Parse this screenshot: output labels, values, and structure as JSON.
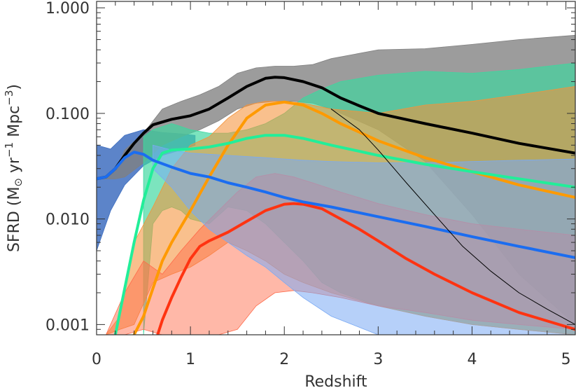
{
  "chart_data": {
    "type": "area",
    "title": "",
    "xlabel": "Redshift",
    "ylabel": {
      "prefix": "SFRD (M",
      "sun": "⊙",
      "mid1": " yr",
      "exp1": "−1",
      "mid2": " Mpc",
      "exp2": "−3",
      "suffix": ")"
    },
    "xlim": [
      0,
      5.1
    ],
    "ylim": [
      0.0008,
      1.15
    ],
    "yscale": "log",
    "grid": false,
    "x_ticks": [
      "0",
      "1",
      "2",
      "3",
      "4",
      "5"
    ],
    "x_tick_values": [
      0,
      1,
      2,
      3,
      4,
      5
    ],
    "y_ticks": [
      "0.001",
      "0.010",
      "0.100",
      "1.000"
    ],
    "y_tick_values": [
      0.001,
      0.01,
      0.1,
      1.0
    ],
    "bands": [
      {
        "color": "#3f6fc0",
        "opacity": 0.85,
        "x": [
          0,
          0.15,
          0.3,
          0.5,
          0.7,
          0.9,
          1.05
        ],
        "upper": [
          0.05,
          0.046,
          0.062,
          0.07,
          0.066,
          0.064,
          0.062
        ],
        "lower": [
          0.005,
          0.012,
          0.021,
          0.032,
          0.04,
          0.045,
          0.05
        ]
      },
      {
        "color": "#808080",
        "opacity": 0.78,
        "x": [
          0,
          0.1,
          0.2,
          0.3,
          0.5,
          0.7,
          0.9,
          1.1,
          1.3,
          1.5,
          1.7,
          1.9,
          2.1,
          2.3,
          2.5,
          3.0,
          3.5,
          4.0,
          4.5,
          5.1
        ],
        "upper": [
          0.024,
          0.025,
          0.028,
          0.045,
          0.065,
          0.11,
          0.13,
          0.15,
          0.18,
          0.24,
          0.27,
          0.28,
          0.28,
          0.29,
          0.33,
          0.4,
          0.41,
          0.45,
          0.5,
          0.55
        ],
        "lower": [
          0.024,
          0.024,
          0.024,
          0.025,
          0.034,
          0.05,
          0.06,
          0.07,
          0.085,
          0.11,
          0.125,
          0.13,
          0.13,
          0.125,
          0.11,
          0.07,
          0.035,
          0.011,
          0.003,
          0.001
        ]
      },
      {
        "color": "#3ed79f",
        "opacity": 0.68,
        "x": [
          0.5,
          0.6,
          0.7,
          0.8,
          0.9,
          1.0,
          1.2,
          1.4,
          1.6,
          1.8,
          2.0,
          2.2,
          2.4,
          2.6,
          3.0,
          3.5,
          4.0,
          4.5,
          5.1
        ],
        "upper": [
          0.06,
          0.07,
          0.075,
          0.08,
          0.075,
          0.07,
          0.065,
          0.065,
          0.07,
          0.08,
          0.1,
          0.14,
          0.17,
          0.2,
          0.23,
          0.25,
          0.24,
          0.26,
          0.3
        ],
        "lower": [
          0.0008,
          0.009,
          0.012,
          0.013,
          0.012,
          0.01,
          0.009,
          0.013,
          0.012,
          0.009,
          0.006,
          0.004,
          0.0025,
          0.002,
          0.0015,
          0.0012,
          0.001,
          0.0009,
          0.0008
        ]
      },
      {
        "color": "#f5933a",
        "opacity": 0.58,
        "x": [
          0.1,
          0.25,
          0.4,
          0.6,
          0.8,
          1.0,
          1.2,
          1.4,
          1.6,
          1.8,
          2.0,
          2.2,
          2.5,
          3.0,
          3.5,
          4.0,
          4.5,
          5.1
        ],
        "upper": [
          0.0008,
          0.0012,
          0.006,
          0.013,
          0.03,
          0.05,
          0.06,
          0.09,
          0.12,
          0.13,
          0.13,
          0.125,
          0.11,
          0.1,
          0.12,
          0.13,
          0.15,
          0.18
        ],
        "lower": [
          0.0008,
          0.0009,
          0.001,
          0.0025,
          0.003,
          0.0035,
          0.0045,
          0.006,
          0.005,
          0.004,
          0.003,
          0.0025,
          0.002,
          0.0015,
          0.0012,
          0.001,
          0.0009,
          0.0008
        ]
      },
      {
        "color": "#ff6a4a",
        "opacity": 0.48,
        "x": [
          0.1,
          0.3,
          0.5,
          0.7,
          0.9,
          1.1,
          1.3,
          1.5,
          1.7,
          1.9,
          2.1,
          2.3,
          2.6,
          3.0,
          3.5,
          4.0,
          4.5,
          5.1
        ],
        "upper": [
          0.0008,
          0.002,
          0.004,
          0.003,
          0.005,
          0.008,
          0.012,
          0.018,
          0.025,
          0.027,
          0.025,
          0.022,
          0.018,
          0.014,
          0.011,
          0.009,
          0.008,
          0.007
        ],
        "lower": [
          0.0008,
          0.0008,
          0.0009,
          0.0008,
          0.0008,
          0.0008,
          0.0008,
          0.0009,
          0.0015,
          0.002,
          0.0021,
          0.002,
          0.0018,
          0.0015,
          0.0013,
          0.0011,
          0.001,
          0.0009
        ]
      },
      {
        "color": "#7aaaf4",
        "opacity": 0.55,
        "x": [
          0.6,
          0.8,
          1.0,
          1.2,
          1.4,
          1.6,
          1.8,
          2.0,
          2.2,
          2.5,
          3.0,
          3.5,
          4.0,
          4.5,
          5.1
        ],
        "upper": [
          0.05,
          0.045,
          0.042,
          0.041,
          0.04,
          0.039,
          0.038,
          0.037,
          0.036,
          0.035,
          0.034,
          0.034,
          0.035,
          0.036,
          0.037
        ],
        "lower": [
          0.03,
          0.02,
          0.012,
          0.008,
          0.006,
          0.0045,
          0.0035,
          0.0025,
          0.0018,
          0.0012,
          0.0008,
          0.0008,
          0.0008,
          0.0008,
          0.0008
        ]
      }
    ],
    "series": [
      {
        "color": "#000000",
        "width": 4,
        "x": [
          0,
          0.1,
          0.2,
          0.3,
          0.4,
          0.5,
          0.6,
          0.8,
          1.0,
          1.2,
          1.4,
          1.6,
          1.8,
          1.9,
          2.0,
          2.2,
          2.4,
          2.6,
          2.8,
          3.0,
          3.5,
          4.0,
          4.5,
          5.1
        ],
        "y": [
          0.024,
          0.025,
          0.03,
          0.04,
          0.052,
          0.065,
          0.078,
          0.088,
          0.095,
          0.11,
          0.14,
          0.18,
          0.215,
          0.22,
          0.218,
          0.2,
          0.175,
          0.14,
          0.118,
          0.1,
          0.08,
          0.065,
          0.052,
          0.042
        ]
      },
      {
        "color": "#ff9a00",
        "width": 4,
        "x": [
          0.4,
          0.5,
          0.6,
          0.7,
          0.8,
          1.0,
          1.2,
          1.4,
          1.6,
          1.8,
          2.0,
          2.2,
          2.4,
          2.6,
          3.0,
          3.5,
          4.0,
          4.5,
          5.1
        ],
        "y": [
          0.0008,
          0.0012,
          0.0022,
          0.004,
          0.006,
          0.012,
          0.025,
          0.05,
          0.09,
          0.12,
          0.128,
          0.12,
          0.1,
          0.08,
          0.055,
          0.038,
          0.028,
          0.021,
          0.016
        ]
      },
      {
        "color": "#22ee99",
        "width": 4,
        "x": [
          0.2,
          0.3,
          0.4,
          0.5,
          0.6,
          0.7,
          0.8,
          1.0,
          1.2,
          1.4,
          1.6,
          1.8,
          2.0,
          2.2,
          2.5,
          3.0,
          3.5,
          4.0,
          4.5,
          5.1
        ],
        "y": [
          0.0008,
          0.0022,
          0.006,
          0.015,
          0.03,
          0.042,
          0.045,
          0.046,
          0.048,
          0.052,
          0.058,
          0.062,
          0.062,
          0.058,
          0.05,
          0.04,
          0.033,
          0.028,
          0.024,
          0.02
        ]
      },
      {
        "color": "#ff3311",
        "width": 4,
        "x": [
          0.65,
          0.7,
          0.8,
          0.9,
          1.0,
          1.1,
          1.2,
          1.4,
          1.6,
          1.8,
          2.0,
          2.1,
          2.2,
          2.4,
          2.6,
          2.8,
          3.0,
          3.3,
          3.6,
          4.0,
          4.5,
          5.1
        ],
        "y": [
          0.0008,
          0.0011,
          0.0018,
          0.0028,
          0.0042,
          0.0055,
          0.0062,
          0.0075,
          0.0095,
          0.012,
          0.0138,
          0.014,
          0.0138,
          0.0125,
          0.01,
          0.008,
          0.0062,
          0.0042,
          0.003,
          0.002,
          0.0013,
          0.0009
        ]
      },
      {
        "color": "#1b6df0",
        "width": 4,
        "x": [
          0,
          0.1,
          0.2,
          0.3,
          0.4,
          0.5,
          0.6,
          0.8,
          1.0,
          1.2,
          1.4,
          1.6,
          1.8,
          2.0,
          2.2,
          2.5,
          3.0,
          3.5,
          4.0,
          4.5,
          5.1
        ],
        "y": [
          0.024,
          0.025,
          0.03,
          0.038,
          0.043,
          0.041,
          0.036,
          0.031,
          0.027,
          0.025,
          0.022,
          0.02,
          0.018,
          0.016,
          0.0145,
          0.013,
          0.0105,
          0.0085,
          0.0068,
          0.0055,
          0.0043
        ]
      },
      {
        "color": "#000000",
        "width": 1,
        "x": [
          2.5,
          2.8,
          3.0,
          3.3,
          3.6,
          3.9,
          4.2,
          4.5,
          4.8,
          5.1
        ],
        "y": [
          0.11,
          0.07,
          0.045,
          0.022,
          0.011,
          0.0055,
          0.0032,
          0.002,
          0.0014,
          0.001
        ]
      }
    ]
  }
}
